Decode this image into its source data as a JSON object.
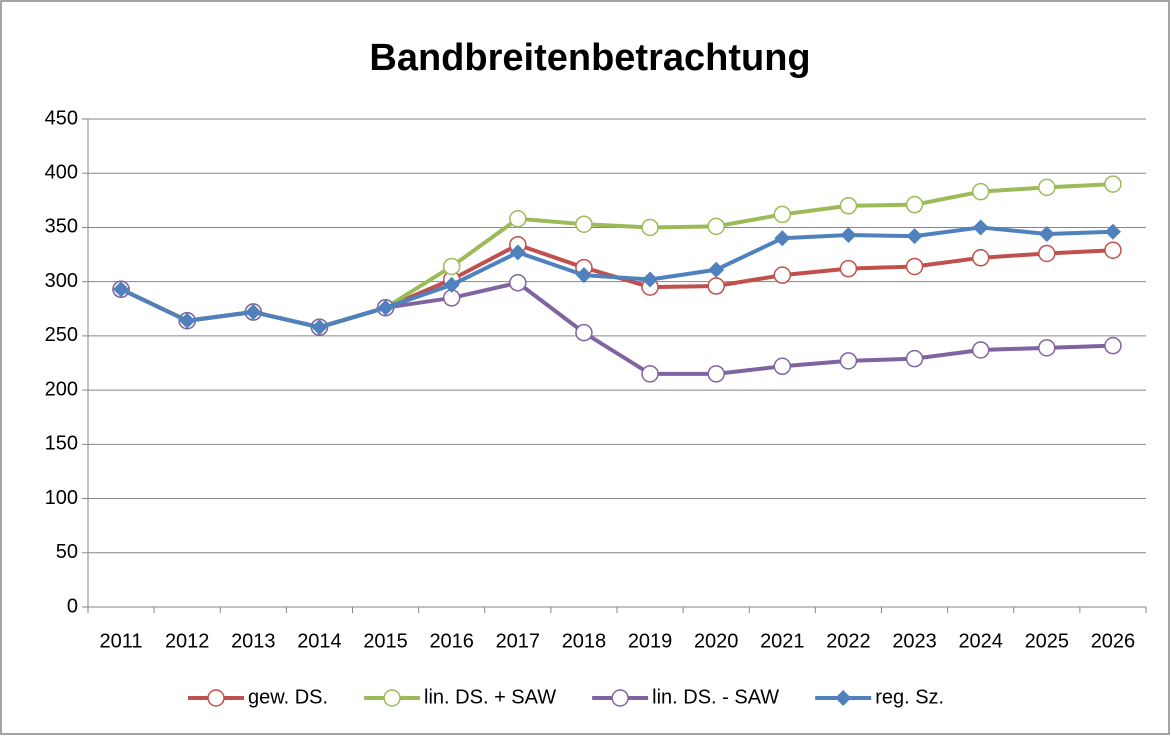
{
  "chart_data": {
    "type": "line",
    "title": "Bandbreitenbetrachtung",
    "categories": [
      "2011",
      "2012",
      "2013",
      "2014",
      "2015",
      "2016",
      "2017",
      "2018",
      "2019",
      "2020",
      "2021",
      "2022",
      "2023",
      "2024",
      "2025",
      "2026"
    ],
    "series": [
      {
        "name": "gew. DS.",
        "color": "#c0504d",
        "marker": "circle",
        "values": [
          293,
          264,
          272,
          258,
          276,
          302,
          334,
          313,
          295,
          296,
          306,
          312,
          314,
          322,
          326,
          329
        ]
      },
      {
        "name": "lin. DS. + SAW",
        "color": "#9bbb59",
        "marker": "circle",
        "values": [
          293,
          264,
          272,
          258,
          276,
          314,
          358,
          353,
          350,
          351,
          362,
          370,
          371,
          383,
          387,
          390
        ]
      },
      {
        "name": "lin. DS. - SAW",
        "color": "#8064a2",
        "marker": "circle",
        "values": [
          293,
          264,
          272,
          258,
          276,
          285,
          299,
          253,
          215,
          215,
          222,
          227,
          229,
          237,
          239,
          241
        ]
      },
      {
        "name": "reg. Sz.",
        "color": "#4f81bd",
        "marker": "diamond",
        "values": [
          293,
          264,
          272,
          258,
          276,
          297,
          327,
          306,
          302,
          311,
          340,
          343,
          342,
          350,
          344,
          346
        ]
      }
    ],
    "ylim": [
      0,
      450
    ],
    "yticks": [
      0,
      50,
      100,
      150,
      200,
      250,
      300,
      350,
      400,
      450
    ],
    "grid": true,
    "legend": "bottom"
  }
}
